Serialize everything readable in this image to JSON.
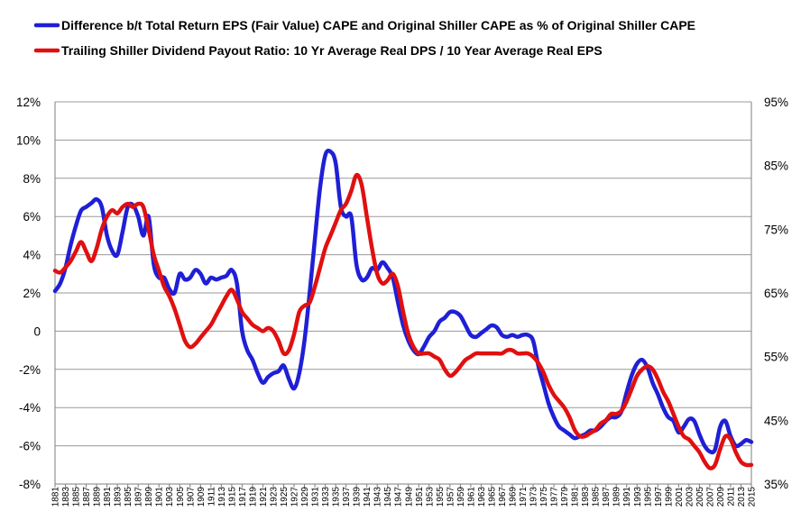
{
  "chart_data": {
    "type": "line",
    "title": "",
    "legend": [
      {
        "name": "Difference b/t Total Return EPS (Fair Value) CAPE and Original Shiller CAPE as % of Original Shiller CAPE",
        "color": "#1f1fd6"
      },
      {
        "name": "Trailing Shiller Dividend Payout Ratio: 10 Yr Average Real DPS / 10 Year Average Real EPS",
        "color": "#e01010"
      }
    ],
    "legend_position": "top-left",
    "y_left": {
      "range": [
        -8,
        12
      ],
      "ticks": [
        12,
        10,
        8,
        6,
        4,
        2,
        0,
        -2,
        -4,
        -6,
        -8
      ],
      "tick_labels": [
        "12%",
        "10%",
        "8%",
        "6%",
        "4%",
        "2%",
        "0",
        "-2%",
        "-4%",
        "-6%",
        "-8%"
      ]
    },
    "y_right": {
      "range": [
        35,
        95
      ],
      "ticks": [
        95,
        85,
        75,
        65,
        55,
        45,
        35
      ],
      "tick_labels": [
        "95%",
        "85%",
        "75%",
        "65%",
        "55%",
        "45%",
        "35%"
      ]
    },
    "x": {
      "range": [
        1881,
        2015
      ],
      "tick_labels": [
        "1881",
        "1883",
        "1885",
        "1887",
        "1889",
        "1891",
        "1893",
        "1895",
        "1897",
        "1899",
        "1901",
        "1903",
        "1905",
        "1907",
        "1909",
        "1911",
        "1913",
        "1915",
        "1917",
        "1919",
        "1921",
        "1923",
        "1925",
        "1927",
        "1929",
        "1931",
        "1933",
        "1935",
        "1937",
        "1939",
        "1941",
        "1943",
        "1945",
        "1947",
        "1949",
        "1951",
        "1953",
        "1955",
        "1957",
        "1959",
        "1961",
        "1963",
        "1965",
        "1967",
        "1969",
        "1971",
        "1973",
        "1975",
        "1977",
        "1979",
        "1981",
        "1983",
        "1985",
        "1987",
        "1989",
        "1991",
        "1993",
        "1995",
        "1997",
        "1999",
        "2001",
        "2003",
        "2005",
        "2007",
        "2009",
        "2011",
        "2013",
        "2015"
      ]
    },
    "grid": true,
    "series": [
      {
        "name": "Difference b/t Total Return EPS (Fair Value) CAPE and Original Shiller CAPE as % of Original Shiller CAPE",
        "axis": "left",
        "color": "#1f1fd6",
        "points": [
          [
            1881,
            2.1
          ],
          [
            1882,
            2.5
          ],
          [
            1883,
            3.3
          ],
          [
            1884,
            4.5
          ],
          [
            1885,
            5.5
          ],
          [
            1886,
            6.3
          ],
          [
            1887,
            6.5
          ],
          [
            1888,
            6.7
          ],
          [
            1889,
            6.9
          ],
          [
            1890,
            6.5
          ],
          [
            1891,
            5.0
          ],
          [
            1892,
            4.2
          ],
          [
            1893,
            4.0
          ],
          [
            1894,
            5.2
          ],
          [
            1895,
            6.5
          ],
          [
            1896,
            6.6
          ],
          [
            1897,
            6.0
          ],
          [
            1898,
            5.0
          ],
          [
            1899,
            6.0
          ],
          [
            1900,
            3.5
          ],
          [
            1901,
            2.8
          ],
          [
            1902,
            2.8
          ],
          [
            1903,
            2.2
          ],
          [
            1904,
            2.0
          ],
          [
            1905,
            3.0
          ],
          [
            1906,
            2.7
          ],
          [
            1907,
            2.8
          ],
          [
            1908,
            3.2
          ],
          [
            1909,
            3.0
          ],
          [
            1910,
            2.5
          ],
          [
            1911,
            2.8
          ],
          [
            1912,
            2.7
          ],
          [
            1913,
            2.8
          ],
          [
            1914,
            2.9
          ],
          [
            1915,
            3.2
          ],
          [
            1916,
            2.5
          ],
          [
            1917,
            0.0
          ],
          [
            1918,
            -1.0
          ],
          [
            1919,
            -1.5
          ],
          [
            1920,
            -2.2
          ],
          [
            1921,
            -2.7
          ],
          [
            1922,
            -2.4
          ],
          [
            1923,
            -2.2
          ],
          [
            1924,
            -2.1
          ],
          [
            1925,
            -1.8
          ],
          [
            1926,
            -2.5
          ],
          [
            1927,
            -3.0
          ],
          [
            1928,
            -2.2
          ],
          [
            1929,
            -0.5
          ],
          [
            1930,
            2.0
          ],
          [
            1931,
            4.8
          ],
          [
            1932,
            7.5
          ],
          [
            1933,
            9.2
          ],
          [
            1934,
            9.4
          ],
          [
            1935,
            8.8
          ],
          [
            1936,
            6.5
          ],
          [
            1937,
            6.0
          ],
          [
            1938,
            6.0
          ],
          [
            1939,
            3.5
          ],
          [
            1940,
            2.7
          ],
          [
            1941,
            2.8
          ],
          [
            1942,
            3.3
          ],
          [
            1943,
            3.2
          ],
          [
            1944,
            3.6
          ],
          [
            1945,
            3.3
          ],
          [
            1946,
            2.8
          ],
          [
            1947,
            1.5
          ],
          [
            1948,
            0.3
          ],
          [
            1949,
            -0.5
          ],
          [
            1950,
            -1.0
          ],
          [
            1951,
            -1.2
          ],
          [
            1952,
            -0.8
          ],
          [
            1953,
            -0.3
          ],
          [
            1954,
            0.0
          ],
          [
            1955,
            0.5
          ],
          [
            1956,
            0.7
          ],
          [
            1957,
            1.0
          ],
          [
            1958,
            1.0
          ],
          [
            1959,
            0.8
          ],
          [
            1960,
            0.3
          ],
          [
            1961,
            -0.2
          ],
          [
            1962,
            -0.3
          ],
          [
            1963,
            -0.1
          ],
          [
            1964,
            0.1
          ],
          [
            1965,
            0.3
          ],
          [
            1966,
            0.2
          ],
          [
            1967,
            -0.2
          ],
          [
            1968,
            -0.3
          ],
          [
            1969,
            -0.2
          ],
          [
            1970,
            -0.3
          ],
          [
            1971,
            -0.2
          ],
          [
            1972,
            -0.2
          ],
          [
            1973,
            -0.5
          ],
          [
            1974,
            -1.8
          ],
          [
            1975,
            -2.8
          ],
          [
            1976,
            -3.8
          ],
          [
            1977,
            -4.5
          ],
          [
            1978,
            -5.0
          ],
          [
            1979,
            -5.2
          ],
          [
            1980,
            -5.4
          ],
          [
            1981,
            -5.6
          ],
          [
            1982,
            -5.5
          ],
          [
            1983,
            -5.4
          ],
          [
            1984,
            -5.2
          ],
          [
            1985,
            -5.2
          ],
          [
            1986,
            -5.0
          ],
          [
            1987,
            -4.7
          ],
          [
            1988,
            -4.5
          ],
          [
            1989,
            -4.5
          ],
          [
            1990,
            -4.2
          ],
          [
            1991,
            -3.2
          ],
          [
            1992,
            -2.3
          ],
          [
            1993,
            -1.7
          ],
          [
            1994,
            -1.5
          ],
          [
            1995,
            -1.9
          ],
          [
            1996,
            -2.7
          ],
          [
            1997,
            -3.3
          ],
          [
            1998,
            -4.0
          ],
          [
            1999,
            -4.5
          ],
          [
            2000,
            -4.7
          ],
          [
            2001,
            -5.3
          ],
          [
            2002,
            -5.0
          ],
          [
            2003,
            -4.6
          ],
          [
            2004,
            -4.7
          ],
          [
            2005,
            -5.4
          ],
          [
            2006,
            -6.0
          ],
          [
            2007,
            -6.3
          ],
          [
            2008,
            -6.2
          ],
          [
            2009,
            -5.0
          ],
          [
            2010,
            -4.7
          ],
          [
            2011,
            -5.5
          ],
          [
            2012,
            -6.0
          ],
          [
            2013,
            -5.9
          ],
          [
            2014,
            -5.7
          ],
          [
            2015,
            -5.8
          ]
        ]
      },
      {
        "name": "Trailing Shiller Dividend Payout Ratio: 10 Yr Average Real DPS / 10 Year Average Real EPS",
        "axis": "right",
        "color": "#e01010",
        "points": [
          [
            1881,
            68.5
          ],
          [
            1882,
            68.2
          ],
          [
            1883,
            69.0
          ],
          [
            1884,
            70.0
          ],
          [
            1885,
            71.5
          ],
          [
            1886,
            73.0
          ],
          [
            1887,
            71.5
          ],
          [
            1888,
            70.0
          ],
          [
            1889,
            72.0
          ],
          [
            1890,
            75.0
          ],
          [
            1891,
            77.0
          ],
          [
            1892,
            78.0
          ],
          [
            1893,
            77.5
          ],
          [
            1894,
            78.5
          ],
          [
            1895,
            79.0
          ],
          [
            1896,
            78.5
          ],
          [
            1897,
            79.0
          ],
          [
            1898,
            78.5
          ],
          [
            1899,
            75.0
          ],
          [
            1900,
            71.0
          ],
          [
            1901,
            68.5
          ],
          [
            1902,
            66.0
          ],
          [
            1903,
            64.5
          ],
          [
            1904,
            62.5
          ],
          [
            1905,
            60.0
          ],
          [
            1906,
            57.5
          ],
          [
            1907,
            56.5
          ],
          [
            1908,
            57.0
          ],
          [
            1909,
            58.0
          ],
          [
            1910,
            59.0
          ],
          [
            1911,
            60.0
          ],
          [
            1912,
            61.5
          ],
          [
            1913,
            63.0
          ],
          [
            1914,
            64.5
          ],
          [
            1915,
            65.5
          ],
          [
            1916,
            64.0
          ],
          [
            1917,
            62.0
          ],
          [
            1918,
            61.0
          ],
          [
            1919,
            60.0
          ],
          [
            1920,
            59.5
          ],
          [
            1921,
            59.0
          ],
          [
            1922,
            59.5
          ],
          [
            1923,
            59.0
          ],
          [
            1924,
            57.5
          ],
          [
            1925,
            55.5
          ],
          [
            1926,
            56.0
          ],
          [
            1927,
            58.5
          ],
          [
            1928,
            62.0
          ],
          [
            1929,
            63.0
          ],
          [
            1930,
            63.5
          ],
          [
            1931,
            66.0
          ],
          [
            1932,
            69.0
          ],
          [
            1933,
            72.0
          ],
          [
            1934,
            74.0
          ],
          [
            1935,
            76.0
          ],
          [
            1936,
            78.0
          ],
          [
            1937,
            79.0
          ],
          [
            1938,
            81.0
          ],
          [
            1939,
            83.5
          ],
          [
            1940,
            82.0
          ],
          [
            1941,
            77.0
          ],
          [
            1942,
            72.0
          ],
          [
            1943,
            68.0
          ],
          [
            1944,
            66.5
          ],
          [
            1945,
            67.0
          ],
          [
            1946,
            68.0
          ],
          [
            1947,
            66.0
          ],
          [
            1948,
            62.0
          ],
          [
            1949,
            58.5
          ],
          [
            1950,
            56.5
          ],
          [
            1951,
            55.5
          ],
          [
            1952,
            55.5
          ],
          [
            1953,
            55.5
          ],
          [
            1954,
            55.0
          ],
          [
            1955,
            54.5
          ],
          [
            1956,
            53.0
          ],
          [
            1957,
            52.0
          ],
          [
            1958,
            52.5
          ],
          [
            1959,
            53.5
          ],
          [
            1960,
            54.5
          ],
          [
            1961,
            55.0
          ],
          [
            1962,
            55.5
          ],
          [
            1963,
            55.5
          ],
          [
            1964,
            55.5
          ],
          [
            1965,
            55.5
          ],
          [
            1966,
            55.5
          ],
          [
            1967,
            55.5
          ],
          [
            1968,
            56.0
          ],
          [
            1969,
            56.0
          ],
          [
            1970,
            55.5
          ],
          [
            1971,
            55.5
          ],
          [
            1972,
            55.5
          ],
          [
            1973,
            55.0
          ],
          [
            1974,
            54.0
          ],
          [
            1975,
            52.5
          ],
          [
            1976,
            50.5
          ],
          [
            1977,
            49.0
          ],
          [
            1978,
            48.0
          ],
          [
            1979,
            47.0
          ],
          [
            1980,
            45.5
          ],
          [
            1981,
            43.5
          ],
          [
            1982,
            42.5
          ],
          [
            1983,
            42.5
          ],
          [
            1984,
            43.0
          ],
          [
            1985,
            43.5
          ],
          [
            1986,
            44.5
          ],
          [
            1987,
            45.0
          ],
          [
            1988,
            46.0
          ],
          [
            1989,
            46.0
          ],
          [
            1990,
            46.5
          ],
          [
            1991,
            48.0
          ],
          [
            1992,
            50.0
          ],
          [
            1993,
            52.0
          ],
          [
            1994,
            53.0
          ],
          [
            1995,
            53.5
          ],
          [
            1996,
            53.0
          ],
          [
            1997,
            51.5
          ],
          [
            1998,
            49.5
          ],
          [
            1999,
            48.0
          ],
          [
            2000,
            46.0
          ],
          [
            2001,
            44.0
          ],
          [
            2002,
            42.5
          ],
          [
            2003,
            42.0
          ],
          [
            2004,
            41.0
          ],
          [
            2005,
            40.0
          ],
          [
            2006,
            38.5
          ],
          [
            2007,
            37.5
          ],
          [
            2008,
            38.0
          ],
          [
            2009,
            40.5
          ],
          [
            2010,
            42.5
          ],
          [
            2011,
            42.0
          ],
          [
            2012,
            40.0
          ],
          [
            2013,
            38.5
          ],
          [
            2014,
            38.0
          ],
          [
            2015,
            38.0
          ]
        ]
      }
    ]
  }
}
